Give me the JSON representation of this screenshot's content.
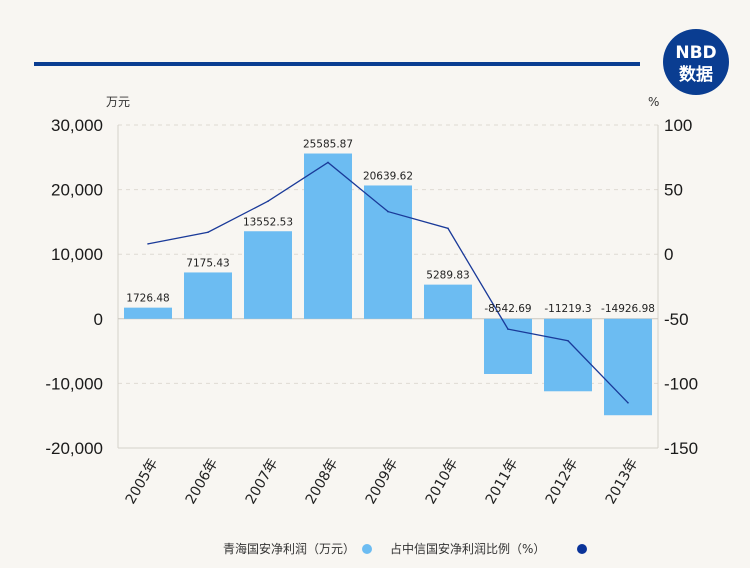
{
  "chart_data": {
    "type": "bar+line",
    "categories": [
      "2005年",
      "2006年",
      "2007年",
      "2008年",
      "2009年",
      "2010年",
      "2011年",
      "2012年",
      "2013年"
    ],
    "bar_series": {
      "name": "青海国安净利润（万元）",
      "values": [
        1726.48,
        7175.43,
        13552.53,
        25585.87,
        20639.62,
        5289.83,
        -8542.69,
        -11219.3,
        -14926.98
      ],
      "labels": [
        "1726.48",
        "7175.43",
        "13552.53",
        "25585.87",
        "20639.62",
        "5289.83",
        "-8542.69",
        "-11219.3",
        "-14926.98"
      ],
      "color": "#6cbcf2"
    },
    "line_series": {
      "name": "占中信国安净利润比例（%）",
      "values": [
        8,
        17,
        41,
        71,
        33,
        20,
        -58,
        -67,
        -115
      ],
      "color": "#1a3a99"
    },
    "left_axis": {
      "unit": "万元",
      "ylim": [
        -20000,
        30000
      ],
      "ticks": [
        30000,
        20000,
        10000,
        0,
        -10000,
        -20000
      ],
      "tick_labels": [
        "30,000",
        "20,000",
        "10,000",
        "0",
        "-10,000",
        "-20,000"
      ]
    },
    "right_axis": {
      "unit": "%",
      "ylim": [
        -150,
        100
      ],
      "ticks": [
        100,
        50,
        0,
        -50,
        -100,
        -150
      ],
      "tick_labels": [
        "100",
        "50",
        "0",
        "-50",
        "-100",
        "-150"
      ]
    },
    "grid": true,
    "legend_position": "bottom-center"
  },
  "header": {
    "rule_color": "#0a3d91"
  },
  "logo": {
    "line1": "NBD",
    "line2": "数据",
    "color": "#0a3d91",
    "accent": "#e8302a"
  },
  "legend": [
    {
      "label": "青海国安净利润（万元）",
      "dot_color": "#6cbcf2"
    },
    {
      "label": "占中信国安净利润比例（%）",
      "dot_color": "#0a3399"
    }
  ]
}
